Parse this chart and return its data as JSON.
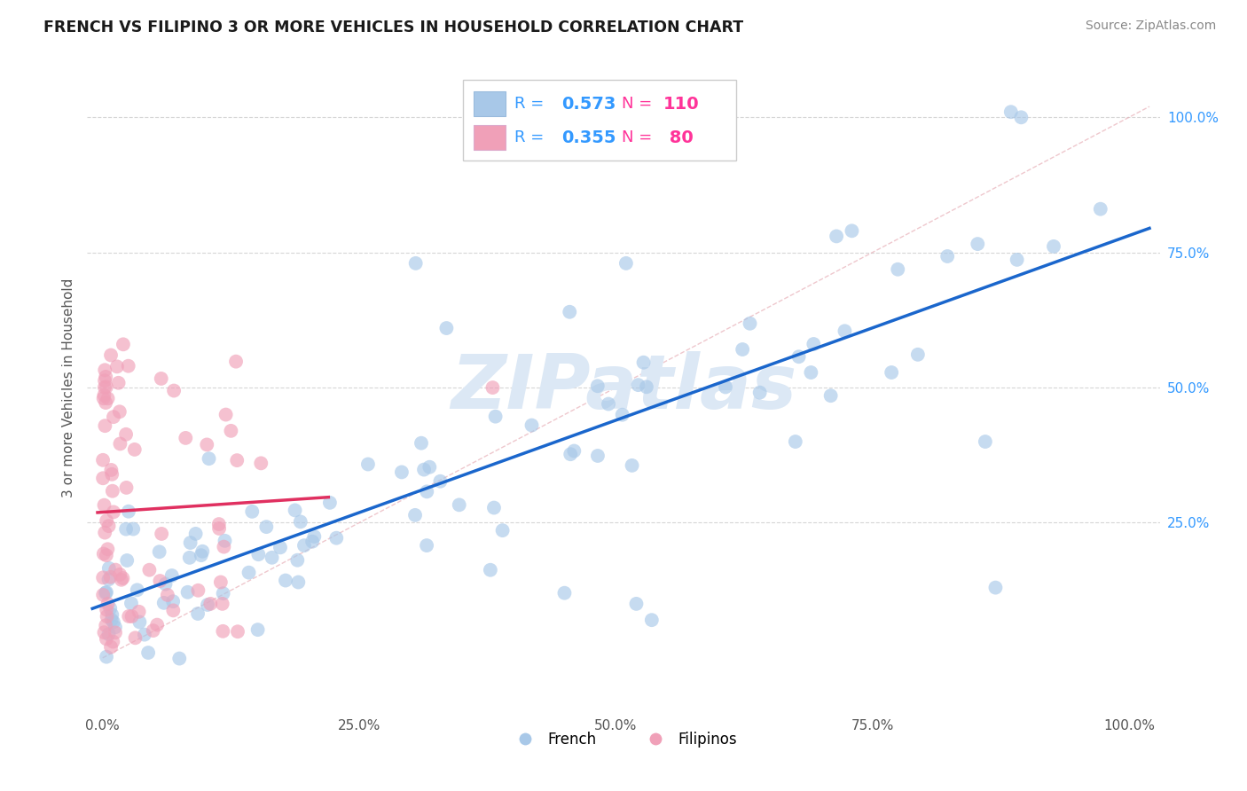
{
  "title": "FRENCH VS FILIPINO 3 OR MORE VEHICLES IN HOUSEHOLD CORRELATION CHART",
  "source_text": "Source: ZipAtlas.com",
  "ylabel": "3 or more Vehicles in Household",
  "french_R": 0.573,
  "french_N": 110,
  "filipino_R": 0.355,
  "filipino_N": 80,
  "french_color": "#a8c8e8",
  "filipino_color": "#f0a0b8",
  "french_line_color": "#1a66cc",
  "filipino_line_color": "#e03060",
  "ref_line_color": "#e8b0b8",
  "background_color": "#ffffff",
  "grid_color": "#cccccc",
  "title_color": "#1a1a1a",
  "watermark_text": "ZIPatlas",
  "watermark_color": "#dce8f5",
  "ytick_color": "#3399ff",
  "xtick_color": "#555555",
  "legend_R_color": "#3399ff",
  "legend_N_color": "#ff3399",
  "legend_box_color_french": "#a8c8e8",
  "legend_box_color_filipino": "#f0a0b8"
}
